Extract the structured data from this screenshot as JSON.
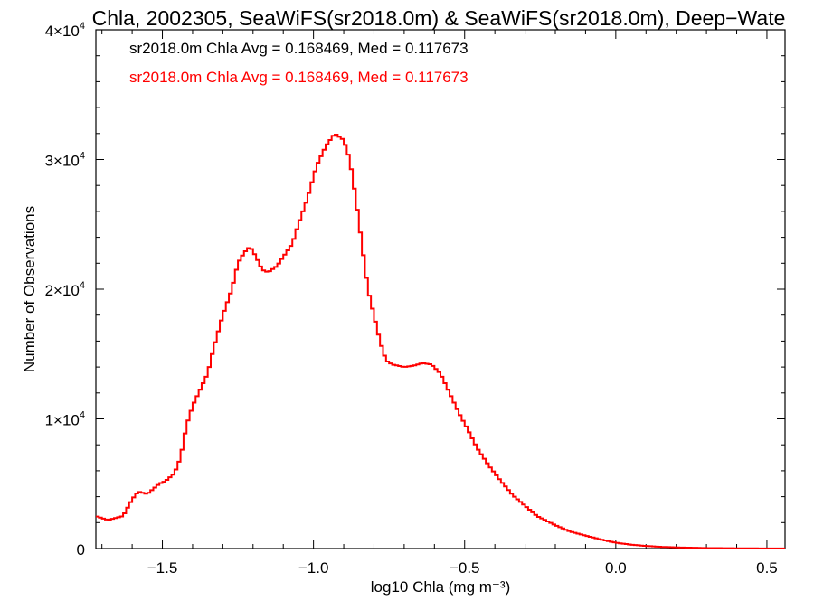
{
  "chart_data": {
    "type": "histogram",
    "title": "Chla, 2002305, SeaWiFS(sr2018.0m) & SeaWiFS(sr2018.0m), Deep−Wate",
    "xlabel": "log10 Chla (mg m⁻³)",
    "ylabel": "Number of Observations",
    "xlim": [
      -1.72,
      0.56
    ],
    "ylim": [
      0,
      40000
    ],
    "x_ticks": [
      {
        "value": -1.5,
        "label": "−1.5"
      },
      {
        "value": -1.0,
        "label": "−1.0"
      },
      {
        "value": -0.5,
        "label": "−0.5"
      },
      {
        "value": 0.0,
        "label": "0.0"
      },
      {
        "value": 0.5,
        "label": "0.5"
      }
    ],
    "y_ticks": [
      {
        "value": 0,
        "label": "0",
        "exp": ""
      },
      {
        "value": 10000,
        "label": "1×10",
        "exp": "4"
      },
      {
        "value": 20000,
        "label": "2×10",
        "exp": "4"
      },
      {
        "value": 30000,
        "label": "3×10",
        "exp": "4"
      },
      {
        "value": 40000,
        "label": "4×10",
        "exp": "4"
      }
    ],
    "annotations": [
      {
        "text": "sr2018.0m Chla Avg = 0.168469, Med = 0.117673",
        "color": "#000000"
      },
      {
        "text": "sr2018.0m Chla Avg = 0.168469, Med = 0.117673",
        "color": "#ff0000"
      }
    ],
    "series": [
      {
        "color": "#ff0000",
        "x": [
          -1.72,
          -1.68,
          -1.63,
          -1.6,
          -1.58,
          -1.55,
          -1.51,
          -1.49,
          -1.46,
          -1.44,
          -1.42,
          -1.4,
          -1.38,
          -1.35,
          -1.33,
          -1.3,
          -1.27,
          -1.25,
          -1.23,
          -1.21,
          -1.19,
          -1.17,
          -1.15,
          -1.12,
          -1.1,
          -1.07,
          -1.05,
          -1.02,
          -0.99,
          -0.96,
          -0.93,
          -0.9,
          -0.88,
          -0.86,
          -0.84,
          -0.82,
          -0.8,
          -0.78,
          -0.76,
          -0.74,
          -0.72,
          -0.7,
          -0.67,
          -0.64,
          -0.61,
          -0.58,
          -0.55,
          -0.52,
          -0.49,
          -0.46,
          -0.42,
          -0.38,
          -0.34,
          -0.3,
          -0.26,
          -0.2,
          -0.15,
          -0.1,
          -0.05,
          0.0,
          0.05,
          0.1,
          0.15,
          0.2,
          0.3,
          0.4,
          0.5,
          0.56
        ],
        "values": [
          2500,
          2200,
          2500,
          3800,
          4400,
          4200,
          5000,
          5200,
          5800,
          7000,
          9500,
          11000,
          12000,
          13500,
          15500,
          18000,
          20000,
          22000,
          22800,
          23300,
          22500,
          21500,
          21300,
          21800,
          22500,
          23500,
          25000,
          27000,
          29500,
          31000,
          32000,
          31500,
          30000,
          27000,
          23500,
          20000,
          18000,
          16000,
          14500,
          14200,
          14100,
          14000,
          14100,
          14300,
          14200,
          13500,
          12000,
          10500,
          9200,
          7800,
          6400,
          5200,
          4100,
          3300,
          2500,
          1800,
          1300,
          1000,
          700,
          450,
          300,
          200,
          130,
          90,
          40,
          20,
          10,
          5
        ]
      }
    ]
  }
}
